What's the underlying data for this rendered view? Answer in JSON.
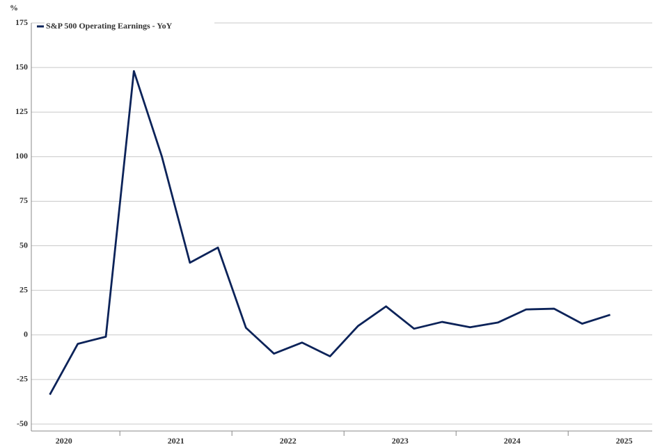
{
  "chart_data": {
    "type": "line",
    "y_unit": "%",
    "x": [
      2020.375,
      2020.625,
      2020.875,
      2021.125,
      2021.375,
      2021.625,
      2021.875,
      2022.125,
      2022.375,
      2022.625,
      2022.875,
      2023.125,
      2023.375,
      2023.625,
      2023.875,
      2024.125,
      2024.375,
      2024.625,
      2024.875,
      2025.125,
      2025.375
    ],
    "series": [
      {
        "name": "S&P 500 Operating Earnings - YoY",
        "color": "#0c2359",
        "values": [
          -33.5,
          -5,
          -1,
          148,
          100,
          40.5,
          49,
          4,
          -10.5,
          -4.3,
          -12,
          5,
          16,
          3.5,
          7.3,
          4.3,
          7,
          14.3,
          14.7,
          6.3,
          11.3
        ]
      }
    ],
    "xlim": [
      2020.21,
      2025.75
    ],
    "xticks": [
      2021,
      2022,
      2023,
      2024,
      2025
    ],
    "year_labels": [
      "2020",
      "2021",
      "2022",
      "2023",
      "2024",
      "2025"
    ],
    "ylim": [
      -50,
      175
    ],
    "yticks": [
      -50,
      -25,
      0,
      25,
      50,
      75,
      100,
      125,
      150,
      175
    ],
    "grid": true,
    "legend": "top-left"
  }
}
